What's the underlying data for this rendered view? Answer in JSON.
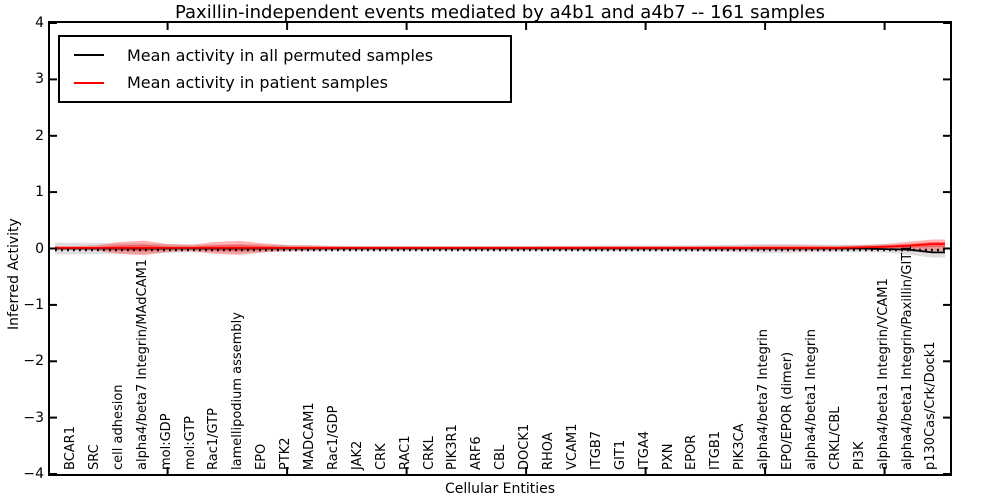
{
  "title": "Paxillin-independent events mediated by a4b1 and a4b7 -- 161 samples",
  "axes": {
    "ylabel": "Inferred Activity",
    "xlabel": "Cellular Entities",
    "ytick_labels": [
      "4",
      "3",
      "2",
      "1",
      "0",
      "−1",
      "−2",
      "−3",
      "−4"
    ],
    "ytick_values": [
      4,
      3,
      2,
      1,
      0,
      -1,
      -2,
      -3,
      -4
    ]
  },
  "legend": {
    "items": [
      {
        "label": "Mean activity in all permuted samples",
        "color": "#000000"
      },
      {
        "label": "Mean activity in patient samples",
        "color": "#ff0000"
      }
    ]
  },
  "colors": {
    "background": "#ffffff",
    "axis": "#000000",
    "permuted_band": "#000000",
    "patient_band": "#ff0000"
  },
  "chart_data": {
    "type": "line",
    "title": "Paxillin-independent events mediated by a4b1 and a4b7 -- 161 samples",
    "xlabel": "Cellular Entities",
    "ylabel": "Inferred Activity",
    "ylim": [
      -4,
      4
    ],
    "grid": false,
    "legend_position": "upper left",
    "categories": [
      "BCAR1",
      "SRC",
      "cell adhesion",
      "alpha4/beta7 Integrin/MAdCAM1",
      "mol:GDP",
      "mol:GTP",
      "Rac1/GTP",
      "lamellipodium assembly",
      "EPO",
      "PTK2",
      "MADCAM1",
      "Rac1/GDP",
      "JAK2",
      "CRK",
      "RAC1",
      "CRKL",
      "PIK3R1",
      "ARF6",
      "CBL",
      "DOCK1",
      "RHOA",
      "VCAM1",
      "ITGB7",
      "GIT1",
      "ITGA4",
      "PXN",
      "EPOR",
      "ITGB1",
      "PIK3CA",
      "alpha4/beta7 Integrin",
      "EPO/EPOR (dimer)",
      "alpha4/beta1 Integrin",
      "CRKL/CBL",
      "PI3K",
      "alpha4/beta1 Integrin/VCAM1",
      "alpha4/beta1 Integrin/Paxillin/GIT1",
      "p130Cas/Crk/Dock1"
    ],
    "xtick_marked_indices": [
      4,
      9,
      14,
      19,
      24,
      29,
      34
    ],
    "series": [
      {
        "name": "Mean activity in all permuted samples",
        "color": "#000000",
        "style": "solid",
        "values": [
          0,
          0,
          0,
          0,
          0,
          0,
          0,
          0,
          0,
          0,
          0,
          0,
          0,
          0,
          0,
          0,
          0,
          0,
          0,
          0,
          0,
          0,
          0,
          0,
          0,
          0,
          0,
          0,
          0,
          0,
          0,
          0,
          0,
          0,
          -0.01,
          -0.02,
          -0.07
        ]
      },
      {
        "name": "Mean activity in patient samples",
        "color": "#ff0000",
        "style": "solid",
        "values": [
          0.01,
          0.01,
          0.01,
          0.01,
          0.01,
          0.01,
          0.01,
          0.01,
          0.01,
          0.01,
          0.01,
          0.01,
          0.01,
          0.01,
          0.01,
          0.01,
          0.01,
          0.01,
          0.01,
          0.01,
          0.01,
          0.01,
          0.01,
          0.01,
          0.01,
          0.01,
          0.01,
          0.01,
          0.01,
          0.01,
          0.01,
          0.01,
          0.01,
          0.02,
          0.03,
          0.05,
          0.08
        ]
      },
      {
        "name": "zero reference",
        "color": "#000000",
        "style": "dotted",
        "value": 0
      }
    ],
    "bands": [
      {
        "name": "permuted samples range",
        "color": "#000000",
        "opacity": 0.13,
        "upper": [
          0.105,
          0.1,
          0.09,
          0.09,
          0.08,
          0.07,
          0.07,
          0.08,
          0.07,
          0.06,
          0.055,
          0.05,
          0.05,
          0.05,
          0.05,
          0.045,
          0.045,
          0.045,
          0.05,
          0.05,
          0.05,
          0.05,
          0.055,
          0.055,
          0.055,
          0.055,
          0.06,
          0.06,
          0.07,
          0.08,
          0.08,
          0.07,
          0.065,
          0.065,
          0.07,
          0.055,
          0.05
        ],
        "lower": [
          -0.105,
          -0.1,
          -0.09,
          -0.09,
          -0.08,
          -0.07,
          -0.07,
          -0.08,
          -0.07,
          -0.06,
          -0.055,
          -0.05,
          -0.05,
          -0.05,
          -0.05,
          -0.045,
          -0.045,
          -0.045,
          -0.05,
          -0.05,
          -0.05,
          -0.05,
          -0.055,
          -0.055,
          -0.055,
          -0.055,
          -0.06,
          -0.06,
          -0.07,
          -0.08,
          -0.08,
          -0.07,
          -0.065,
          -0.065,
          -0.07,
          -0.11,
          -0.16
        ]
      },
      {
        "name": "patient samples range",
        "color": "#ff0000",
        "opacity": 0.3,
        "upper": [
          0.045,
          0.055,
          0.115,
          0.14,
          0.08,
          0.065,
          0.115,
          0.135,
          0.09,
          0.06,
          0.055,
          0.045,
          0.04,
          0.04,
          0.04,
          0.04,
          0.04,
          0.04,
          0.04,
          0.04,
          0.045,
          0.045,
          0.045,
          0.045,
          0.045,
          0.045,
          0.045,
          0.05,
          0.05,
          0.055,
          0.055,
          0.055,
          0.05,
          0.06,
          0.08,
          0.12,
          0.16
        ],
        "lower": [
          -0.025,
          -0.035,
          -0.095,
          -0.12,
          -0.06,
          -0.045,
          -0.095,
          -0.115,
          -0.07,
          -0.04,
          -0.035,
          -0.025,
          -0.02,
          -0.02,
          -0.02,
          -0.02,
          -0.02,
          -0.02,
          -0.02,
          -0.02,
          -0.025,
          -0.025,
          -0.025,
          -0.025,
          -0.025,
          -0.025,
          -0.025,
          -0.03,
          -0.03,
          -0.035,
          -0.035,
          -0.035,
          -0.03,
          -0.02,
          -0.02,
          -0.03,
          -0.04
        ]
      }
    ]
  }
}
